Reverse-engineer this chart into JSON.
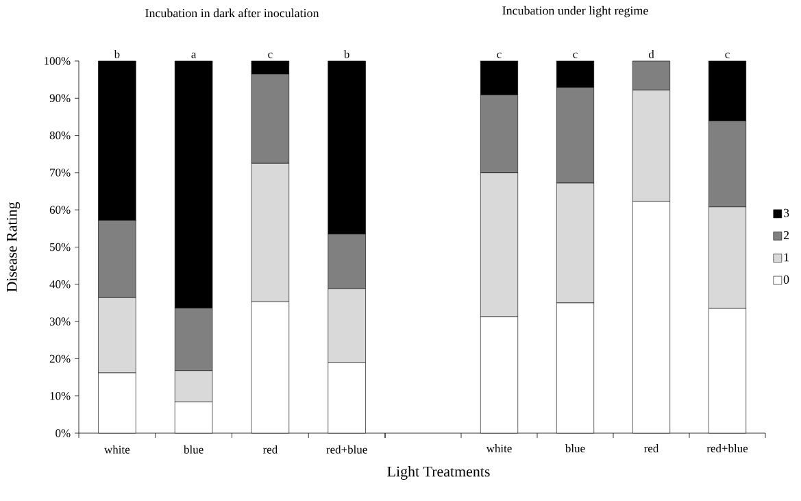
{
  "chart_data": [
    {
      "type": "bar",
      "stacked": true,
      "title": "Incubation in dark after inoculation",
      "ylabel": "Disease Rating",
      "xlabel": "Light Treatments",
      "categories": [
        "white",
        "blue",
        "red",
        "red+blue"
      ],
      "series": [
        {
          "color": "#ffffff",
          "values": [
            16.2,
            8.4,
            35.3,
            19.0
          ]
        },
        {
          "color": "#d9d9d9",
          "values": [
            20.2,
            8.4,
            37.2,
            19.8
          ]
        },
        {
          "color": "#808080",
          "values": [
            20.8,
            16.8,
            24.0,
            14.7
          ]
        },
        {
          "color": "#000000",
          "values": [
            42.8,
            66.4,
            3.5,
            46.5
          ]
        }
      ],
      "ylim": [
        0,
        100
      ],
      "yticks": [
        {
          "value": 0,
          "label": "0%"
        },
        {
          "value": 10,
          "label": "10%"
        },
        {
          "value": 20,
          "label": "20%"
        },
        {
          "value": 30,
          "label": "30%"
        },
        {
          "value": 40,
          "label": "40%"
        },
        {
          "value": 50,
          "label": "50%"
        },
        {
          "value": 60,
          "label": "60%"
        },
        {
          "value": 70,
          "label": "70%"
        },
        {
          "value": 80,
          "label": "80%"
        },
        {
          "value": 90,
          "label": "90%"
        },
        {
          "value": 100,
          "label": "100%"
        }
      ],
      "annotations": [
        {
          "text": "b",
          "x": "white",
          "y": 100
        },
        {
          "text": "a",
          "x": "blue",
          "y": 100
        },
        {
          "text": "c",
          "x": "red",
          "y": 100
        },
        {
          "text": "b",
          "x": "red+blue",
          "y": 100
        }
      ]
    },
    {
      "type": "bar",
      "stacked": true,
      "title": "Incubation under light regime",
      "legend": "right",
      "tick_labels": "x",
      "categories": [
        null,
        "white",
        "blue",
        "red",
        "red+blue"
      ],
      "series": [
        {
          "name": "0",
          "color": "#ffffff",
          "values": [
            null,
            31.3,
            35.0,
            62.3,
            33.5
          ]
        },
        {
          "name": "1",
          "color": "#d9d9d9",
          "values": [
            null,
            38.7,
            32.2,
            29.9,
            27.3
          ]
        },
        {
          "name": "2",
          "color": "#808080",
          "values": [
            null,
            20.9,
            25.7,
            7.8,
            23.1
          ]
        },
        {
          "name": "3",
          "color": "#000000",
          "values": [
            null,
            9.1,
            7.1,
            0,
            16.1
          ]
        }
      ],
      "ylim": [
        0,
        100
      ],
      "annotations": [
        {
          "text": "c",
          "x": "white",
          "y": 100
        },
        {
          "text": "c",
          "x": "blue",
          "y": 100
        },
        {
          "text": "d",
          "x": "red",
          "y": 100
        },
        {
          "text": "c",
          "x": "red+blue",
          "y": 100
        }
      ]
    }
  ]
}
